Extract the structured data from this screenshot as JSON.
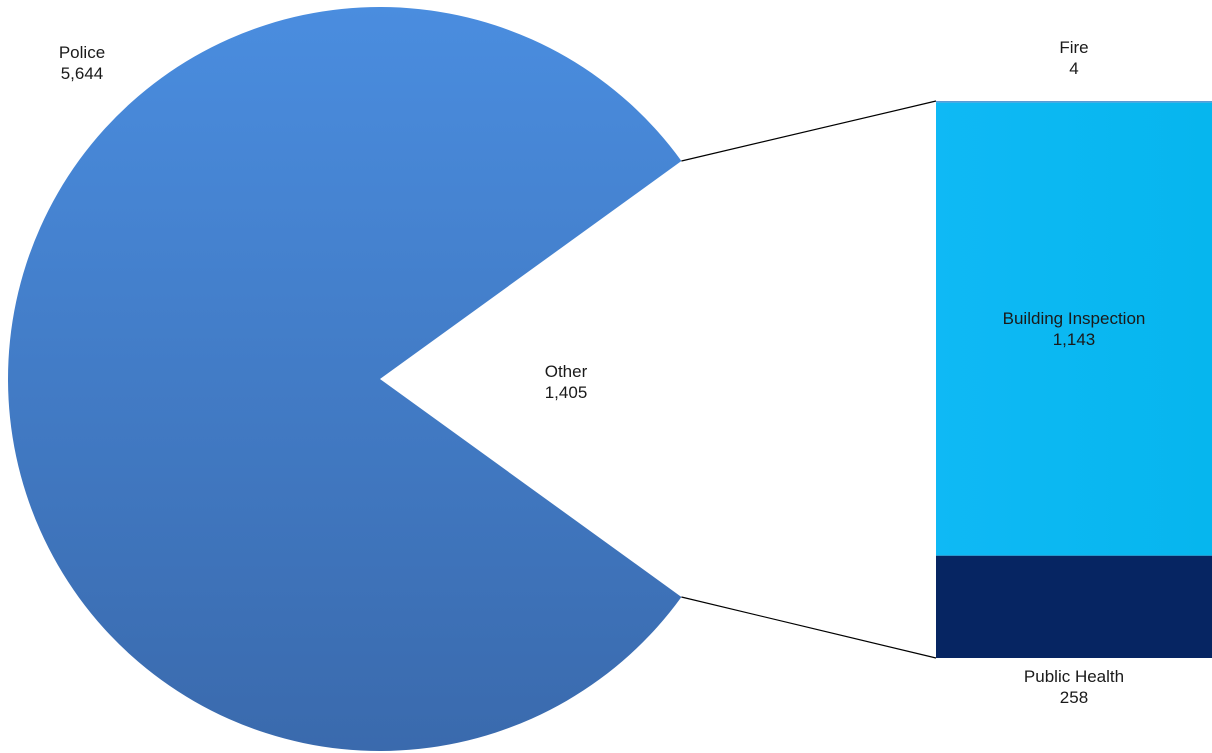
{
  "chart_data": {
    "type": "pie",
    "subtype": "bar-of-pie",
    "pie_slices": [
      {
        "name": "Police",
        "value": 5644,
        "label": "Police",
        "value_label": "5,644",
        "color": "#4a86d6"
      },
      {
        "name": "Other",
        "value": 1405,
        "label": "Other",
        "value_label": "1,405",
        "exploded_to_bar": true
      }
    ],
    "bar_segments": [
      {
        "name": "Fire",
        "value": 4,
        "label": "Fire",
        "value_label": "4",
        "color": "#5b9bd5"
      },
      {
        "name": "Building Inspection",
        "value": 1143,
        "label": "Building Inspection",
        "value_label": "1,143",
        "color": "#06b9f2"
      },
      {
        "name": "Public Health",
        "value": 258,
        "label": "Public Health",
        "value_label": "258",
        "color": "#062562"
      }
    ],
    "title": "",
    "legend": "none"
  }
}
